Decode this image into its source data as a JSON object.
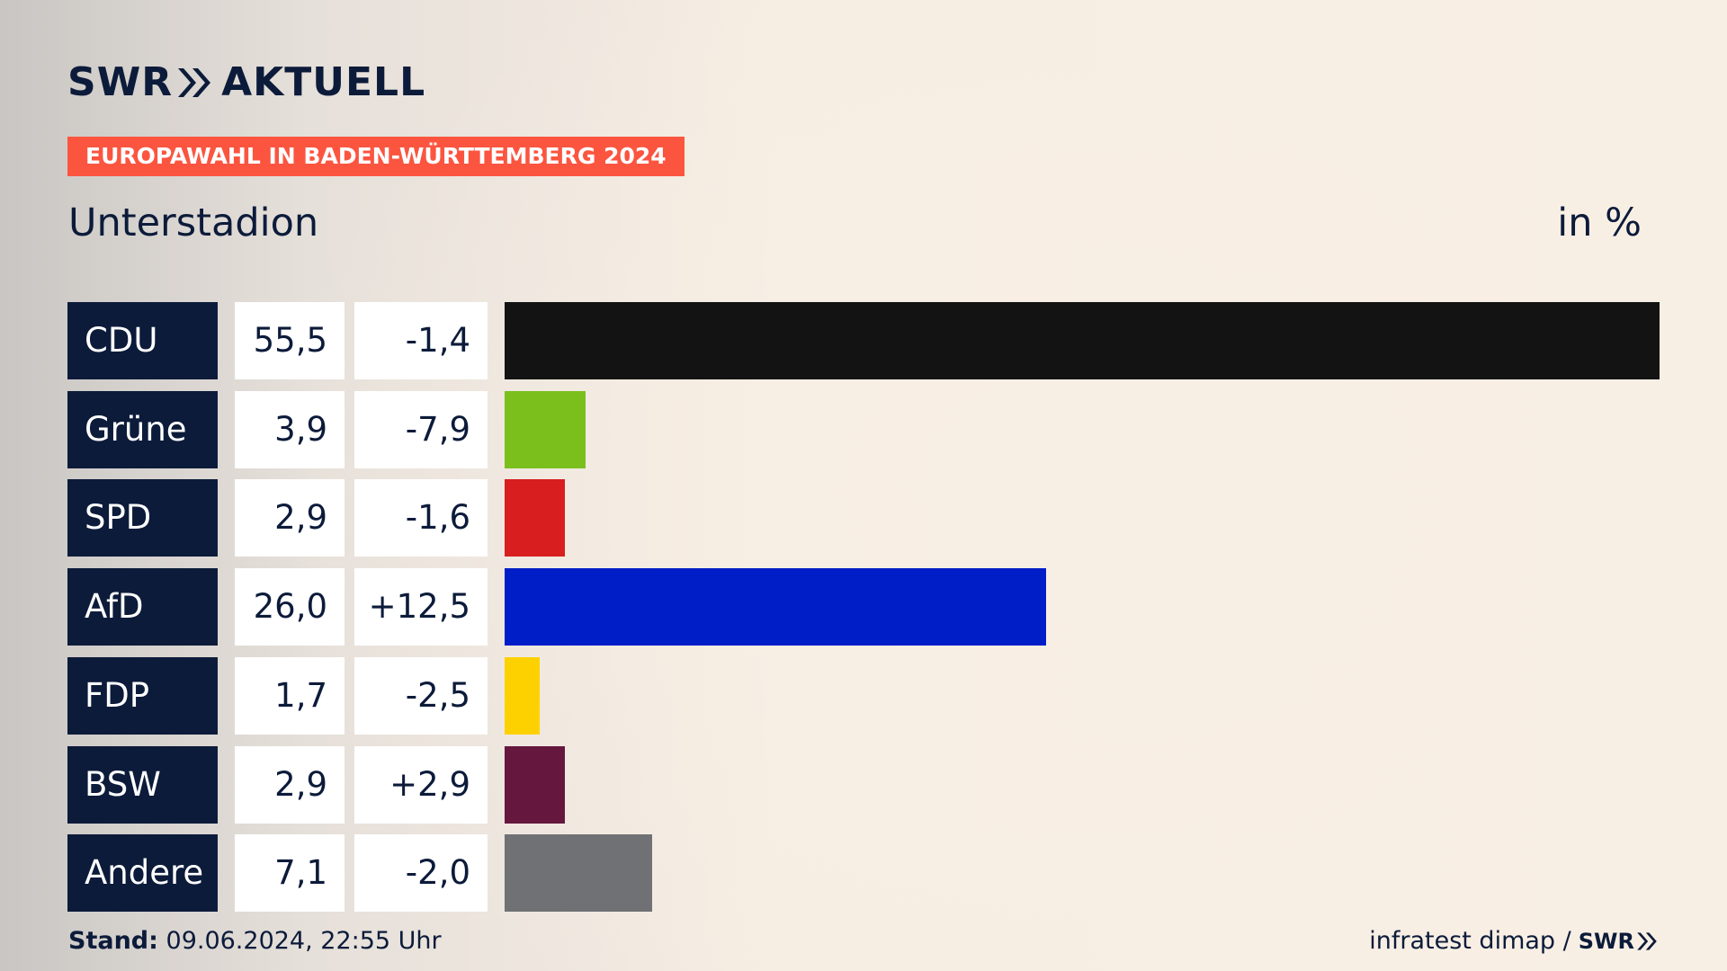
{
  "logo": {
    "brand": "SWR",
    "product": "AKTUELL"
  },
  "banner": "EUROPAWAHL IN BADEN-WÜRTTEMBERG 2024",
  "subtitle": "Unterstadion",
  "unit_label": "in %",
  "footer": {
    "stand_label": "Stand:",
    "stand_value": "09.06.2024, 22:55 Uhr",
    "source": "infratest dimap /",
    "source_brand": "SWR"
  },
  "chart_data": {
    "type": "bar",
    "orientation": "horizontal",
    "title": "Unterstadion",
    "unit": "in %",
    "categories": [
      "CDU",
      "Grüne",
      "SPD",
      "AfD",
      "FDP",
      "BSW",
      "Andere"
    ],
    "values": [
      55.5,
      3.9,
      2.9,
      26.0,
      1.7,
      2.9,
      7.1
    ],
    "value_labels": [
      "55,5",
      "3,9",
      "2,9",
      "26,0",
      "1,7",
      "2,9",
      "7,1"
    ],
    "changes": [
      -1.4,
      -7.9,
      -1.6,
      12.5,
      -2.5,
      2.9,
      -2.0
    ],
    "change_labels": [
      "-1,4",
      "-7,9",
      "-1,6",
      "+12,5",
      "-2,5",
      "+2,9",
      "-2,0"
    ],
    "colors": [
      "#131313",
      "#7bbf1d",
      "#d81e1e",
      "#001ec8",
      "#fdd100",
      "#66173e",
      "#707174"
    ],
    "xlim": [
      0,
      55.5
    ],
    "grid": false,
    "legend": "none"
  }
}
